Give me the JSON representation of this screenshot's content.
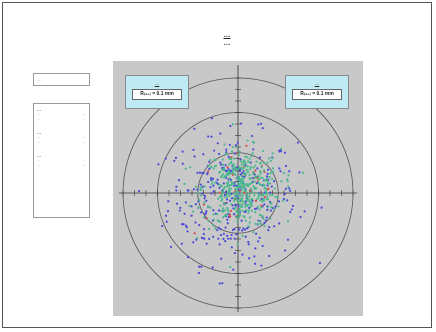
{
  "title": {
    "line1": "…",
    "line2": "…"
  },
  "info_box": {
    "text": "…"
  },
  "legend": {
    "groups": [
      {
        "name": "…",
        "color": "#2233cc",
        "rows": [
          {
            "left": "…",
            "right": "…"
          },
          {
            "left": "…",
            "right": "…"
          }
        ]
      },
      {
        "name": "…",
        "color": "#cc2222",
        "rows": [
          {
            "left": "…",
            "right": "…"
          },
          {
            "left": "…",
            "right": "…"
          }
        ]
      },
      {
        "name": "…",
        "color": "#888888",
        "rows": [
          {
            "left": "…",
            "right": "…"
          },
          {
            "left": "…",
            "right": "…"
          }
        ]
      }
    ]
  },
  "callouts": {
    "left": {
      "title": "…",
      "value": "R₍₉₅₎ = 0.1 mm"
    },
    "right": {
      "title": "…",
      "value": "R₍₉₅₎ = 0.1 mm"
    }
  },
  "chart_data": {
    "type": "scatter",
    "title": "",
    "xlabel": "",
    "ylabel": "",
    "xlim": [
      -1,
      1
    ],
    "ylim": [
      -1,
      1
    ],
    "grid": false,
    "legend_position": "left",
    "circles": [
      0.35,
      0.7,
      1.0
    ],
    "series": [
      {
        "color": "#4a4ad8",
        "count": 320
      },
      {
        "color": "#d84a4a",
        "count": 35
      },
      {
        "color": "#49b88c",
        "count": 420
      }
    ],
    "colors": {
      "plot_background": "#c8c8c8",
      "circle_stroke": "#555555",
      "axis": "#333333"
    }
  }
}
